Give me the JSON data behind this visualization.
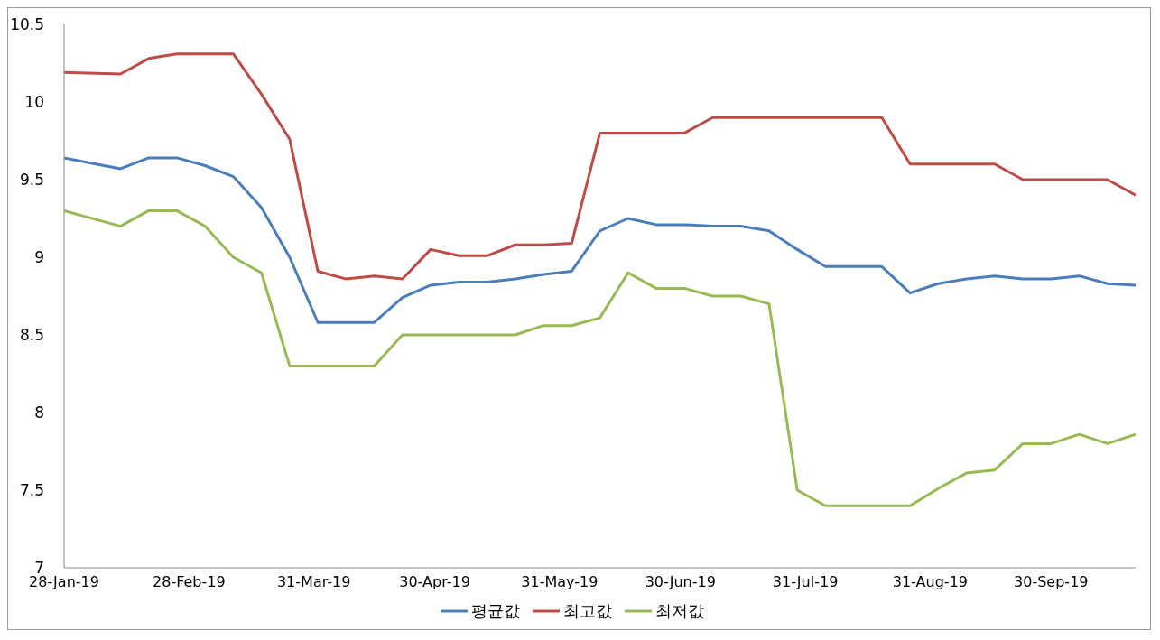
{
  "chart_data": {
    "type": "line",
    "x": [
      "2019-01-28",
      "2019-02-11",
      "2019-02-18",
      "2019-02-25",
      "2019-03-04",
      "2019-03-11",
      "2019-03-18",
      "2019-03-25",
      "2019-04-01",
      "2019-04-08",
      "2019-04-15",
      "2019-04-22",
      "2019-04-29",
      "2019-05-06",
      "2019-05-13",
      "2019-05-20",
      "2019-05-27",
      "2019-06-03",
      "2019-06-10",
      "2019-06-17",
      "2019-06-24",
      "2019-07-01",
      "2019-07-08",
      "2019-07-15",
      "2019-07-22",
      "2019-07-29",
      "2019-08-05",
      "2019-08-12",
      "2019-08-19",
      "2019-08-26",
      "2019-09-02",
      "2019-09-09",
      "2019-09-16",
      "2019-09-23",
      "2019-09-30",
      "2019-10-07",
      "2019-10-14",
      "2019-10-21"
    ],
    "series": [
      {
        "name": "평균값",
        "color": "#4a7ebb",
        "values": [
          9.64,
          9.57,
          9.64,
          9.64,
          9.59,
          9.52,
          9.32,
          9.0,
          8.58,
          8.58,
          8.58,
          8.74,
          8.82,
          8.84,
          8.84,
          8.86,
          8.89,
          8.91,
          9.17,
          9.25,
          9.21,
          9.21,
          9.2,
          9.2,
          9.17,
          9.05,
          8.94,
          8.94,
          8.94,
          8.77,
          8.83,
          8.86,
          8.88,
          8.86,
          8.86,
          8.88,
          8.83,
          8.82
        ]
      },
      {
        "name": "최고값",
        "color": "#be4b48",
        "values": [
          10.19,
          10.18,
          10.28,
          10.31,
          10.31,
          10.31,
          10.05,
          9.76,
          8.91,
          8.86,
          8.88,
          8.86,
          9.05,
          9.01,
          9.01,
          9.08,
          9.08,
          9.09,
          9.8,
          9.8,
          9.8,
          9.8,
          9.9,
          9.9,
          9.9,
          9.9,
          9.9,
          9.9,
          9.9,
          9.6,
          9.6,
          9.6,
          9.6,
          9.5,
          9.5,
          9.5,
          9.5,
          9.4
        ]
      },
      {
        "name": "최저값",
        "color": "#98b954",
        "values": [
          9.3,
          9.2,
          9.3,
          9.3,
          9.2,
          9.0,
          8.9,
          8.3,
          8.3,
          8.3,
          8.3,
          8.5,
          8.5,
          8.5,
          8.5,
          8.5,
          8.56,
          8.56,
          8.61,
          8.9,
          8.8,
          8.8,
          8.75,
          8.75,
          8.7,
          7.5,
          7.4,
          7.4,
          7.4,
          7.4,
          7.51,
          7.61,
          7.63,
          7.8,
          7.8,
          7.86,
          7.8,
          7.86
        ]
      }
    ],
    "xlim": [
      "2019-01-28",
      "2019-10-21"
    ],
    "xticks": [
      {
        "value": "2019-01-28",
        "label": "28-Jan-19"
      },
      {
        "value": "2019-02-28",
        "label": "28-Feb-19"
      },
      {
        "value": "2019-03-31",
        "label": "31-Mar-19"
      },
      {
        "value": "2019-04-30",
        "label": "30-Apr-19"
      },
      {
        "value": "2019-05-31",
        "label": "31-May-19"
      },
      {
        "value": "2019-06-30",
        "label": "30-Jun-19"
      },
      {
        "value": "2019-07-31",
        "label": "31-Jul-19"
      },
      {
        "value": "2019-08-31",
        "label": "31-Aug-19"
      },
      {
        "value": "2019-09-30",
        "label": "30-Sep-19"
      }
    ],
    "ylim": [
      7,
      10.5
    ],
    "yticks": [
      7,
      7.5,
      8,
      8.5,
      9,
      9.5,
      10,
      10.5
    ],
    "legend": "bottom",
    "marker": "none",
    "line_style": "solid"
  }
}
